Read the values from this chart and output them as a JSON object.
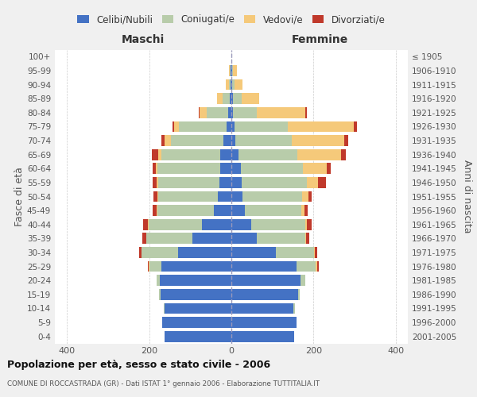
{
  "age_groups": [
    "0-4",
    "5-9",
    "10-14",
    "15-19",
    "20-24",
    "25-29",
    "30-34",
    "35-39",
    "40-44",
    "45-49",
    "50-54",
    "55-59",
    "60-64",
    "65-69",
    "70-74",
    "75-79",
    "80-84",
    "85-89",
    "90-94",
    "95-99",
    "100+"
  ],
  "birth_years": [
    "2001-2005",
    "1996-2000",
    "1991-1995",
    "1986-1990",
    "1981-1985",
    "1976-1980",
    "1971-1975",
    "1966-1970",
    "1961-1965",
    "1956-1960",
    "1951-1955",
    "1946-1950",
    "1941-1945",
    "1936-1940",
    "1931-1935",
    "1926-1930",
    "1921-1925",
    "1916-1920",
    "1911-1915",
    "1906-1910",
    "≤ 1905"
  ],
  "colors": {
    "celibi": "#4472c4",
    "coniugati": "#b8ccaa",
    "vedovi": "#f5c97a",
    "divorziati": "#c0392b"
  },
  "maschi": {
    "celibi": [
      163,
      168,
      162,
      173,
      175,
      170,
      130,
      95,
      72,
      42,
      33,
      30,
      28,
      28,
      20,
      12,
      8,
      4,
      2,
      1,
      0
    ],
    "coniugati": [
      0,
      0,
      2,
      4,
      8,
      30,
      88,
      112,
      130,
      138,
      145,
      148,
      152,
      142,
      128,
      115,
      52,
      18,
      4,
      2,
      0
    ],
    "vedovi": [
      0,
      0,
      0,
      0,
      0,
      2,
      1,
      1,
      2,
      2,
      3,
      4,
      4,
      9,
      14,
      12,
      18,
      13,
      7,
      2,
      0
    ],
    "divorziati": [
      0,
      0,
      0,
      0,
      0,
      1,
      5,
      8,
      11,
      9,
      9,
      9,
      8,
      14,
      8,
      5,
      2,
      0,
      0,
      0,
      0
    ]
  },
  "femmine": {
    "celibi": [
      153,
      158,
      152,
      163,
      168,
      158,
      108,
      62,
      48,
      33,
      28,
      26,
      23,
      18,
      9,
      7,
      4,
      3,
      2,
      1,
      0
    ],
    "coniugati": [
      0,
      0,
      2,
      4,
      13,
      48,
      93,
      118,
      132,
      138,
      145,
      158,
      152,
      142,
      138,
      130,
      58,
      22,
      6,
      2,
      0
    ],
    "vedovi": [
      0,
      0,
      0,
      0,
      0,
      4,
      2,
      3,
      4,
      7,
      14,
      28,
      58,
      108,
      128,
      162,
      118,
      43,
      20,
      10,
      0
    ],
    "divorziati": [
      0,
      0,
      0,
      0,
      0,
      3,
      7,
      7,
      11,
      7,
      9,
      19,
      9,
      11,
      9,
      7,
      4,
      0,
      0,
      0,
      0
    ]
  },
  "xlim": 430,
  "xlabel_left": "Maschi",
  "xlabel_right": "Femmine",
  "ylabel_left": "Fasce di età",
  "ylabel_right": "Anni di nascita",
  "title": "Popolazione per età, sesso e stato civile - 2006",
  "subtitle": "COMUNE DI ROCCASTRADA (GR) - Dati ISTAT 1° gennaio 2006 - Elaborazione TUTTITALIA.IT",
  "legend_labels": [
    "Celibi/Nubili",
    "Coniugati/e",
    "Vedovi/e",
    "Divorziati/e"
  ],
  "bg_color": "#f0f0f0",
  "plot_bg": "#ffffff"
}
